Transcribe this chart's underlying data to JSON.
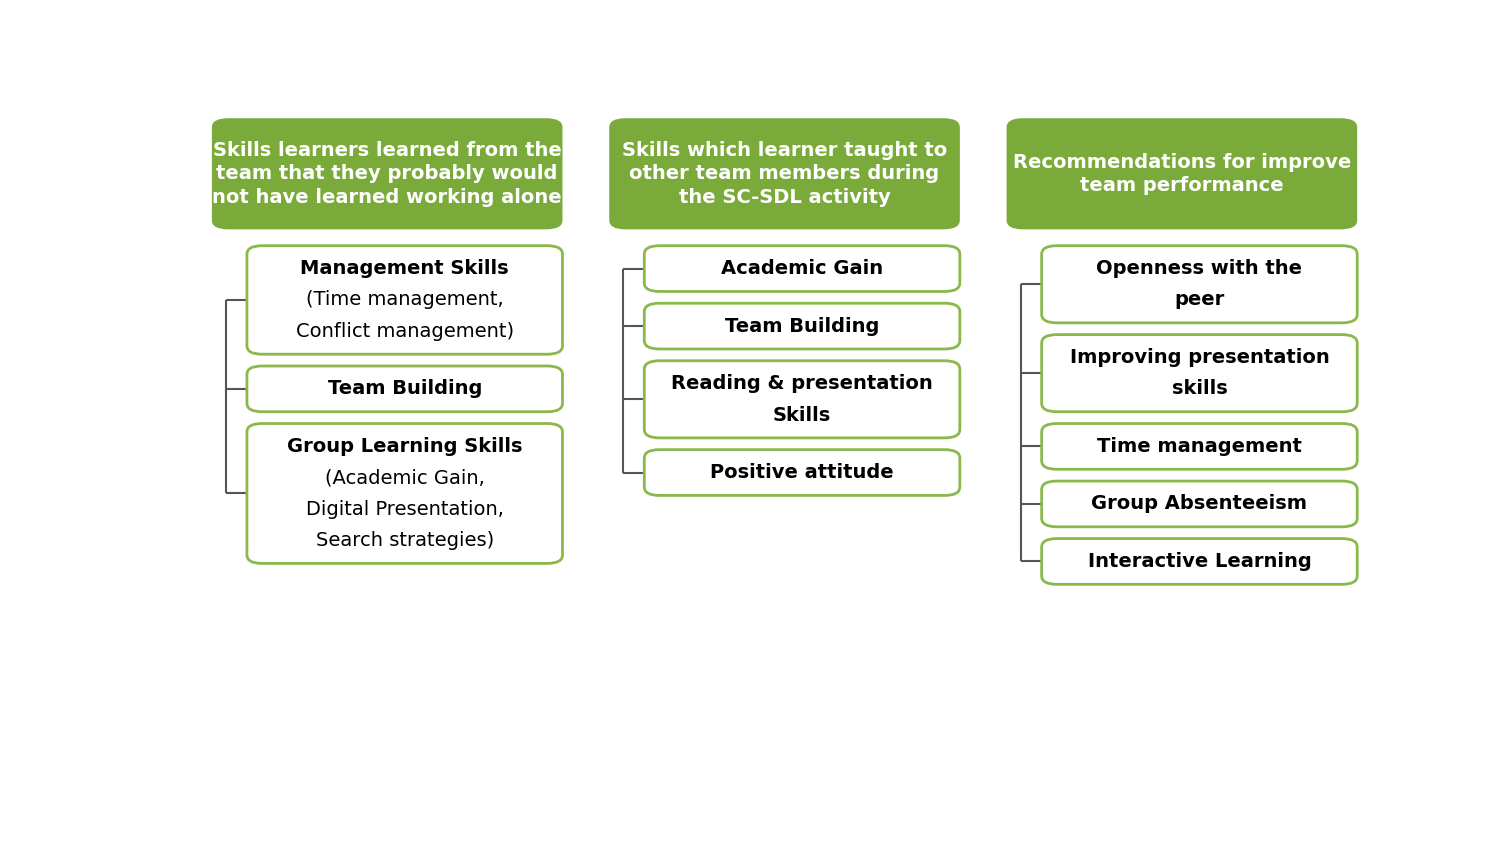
{
  "background_color": "#ffffff",
  "header_bg_color": "#7aab3a",
  "header_text_color": "#ffffff",
  "box_border_color": "#8ab84a",
  "box_text_color": "#000000",
  "columns": [
    {
      "header": "Skills learners learned from the\nteam that they probably would\nnot have learned working alone",
      "items": [
        {
          "lines": [
            [
              "Management Skills",
              true
            ],
            [
              "(Time management,",
              false
            ],
            [
              "Conflict management)",
              false
            ]
          ]
        },
        {
          "lines": [
            [
              "Team Building",
              true
            ]
          ]
        },
        {
          "lines": [
            [
              "Group Learning Skills",
              true
            ],
            [
              "(Academic Gain,",
              false
            ],
            [
              "Digital Presentation,",
              false
            ],
            [
              "Search strategies)",
              false
            ]
          ]
        }
      ]
    },
    {
      "header": "Skills which learner taught to\nother team members during\nthe SC-SDL activity",
      "items": [
        {
          "lines": [
            [
              "Academic Gain",
              true
            ]
          ]
        },
        {
          "lines": [
            [
              "Team Building",
              true
            ]
          ]
        },
        {
          "lines": [
            [
              "Reading & presentation",
              true
            ],
            [
              "Skills",
              true
            ]
          ]
        },
        {
          "lines": [
            [
              "Positive attitude",
              true
            ]
          ]
        }
      ]
    },
    {
      "header": "Recommendations for improve\nteam performance",
      "items": [
        {
          "lines": [
            [
              "Openness with the",
              true
            ],
            [
              "peer",
              true
            ]
          ]
        },
        {
          "lines": [
            [
              "Improving presentation",
              true
            ],
            [
              "skills",
              true
            ]
          ]
        },
        {
          "lines": [
            [
              "Time management",
              true
            ]
          ]
        },
        {
          "lines": [
            [
              "Group Absenteeism",
              true
            ]
          ]
        },
        {
          "lines": [
            [
              "Interactive Learning",
              true
            ]
          ]
        }
      ]
    }
  ],
  "header_fontsize": 14,
  "item_fontsize": 14,
  "fig_width": 15.08,
  "fig_height": 8.49
}
